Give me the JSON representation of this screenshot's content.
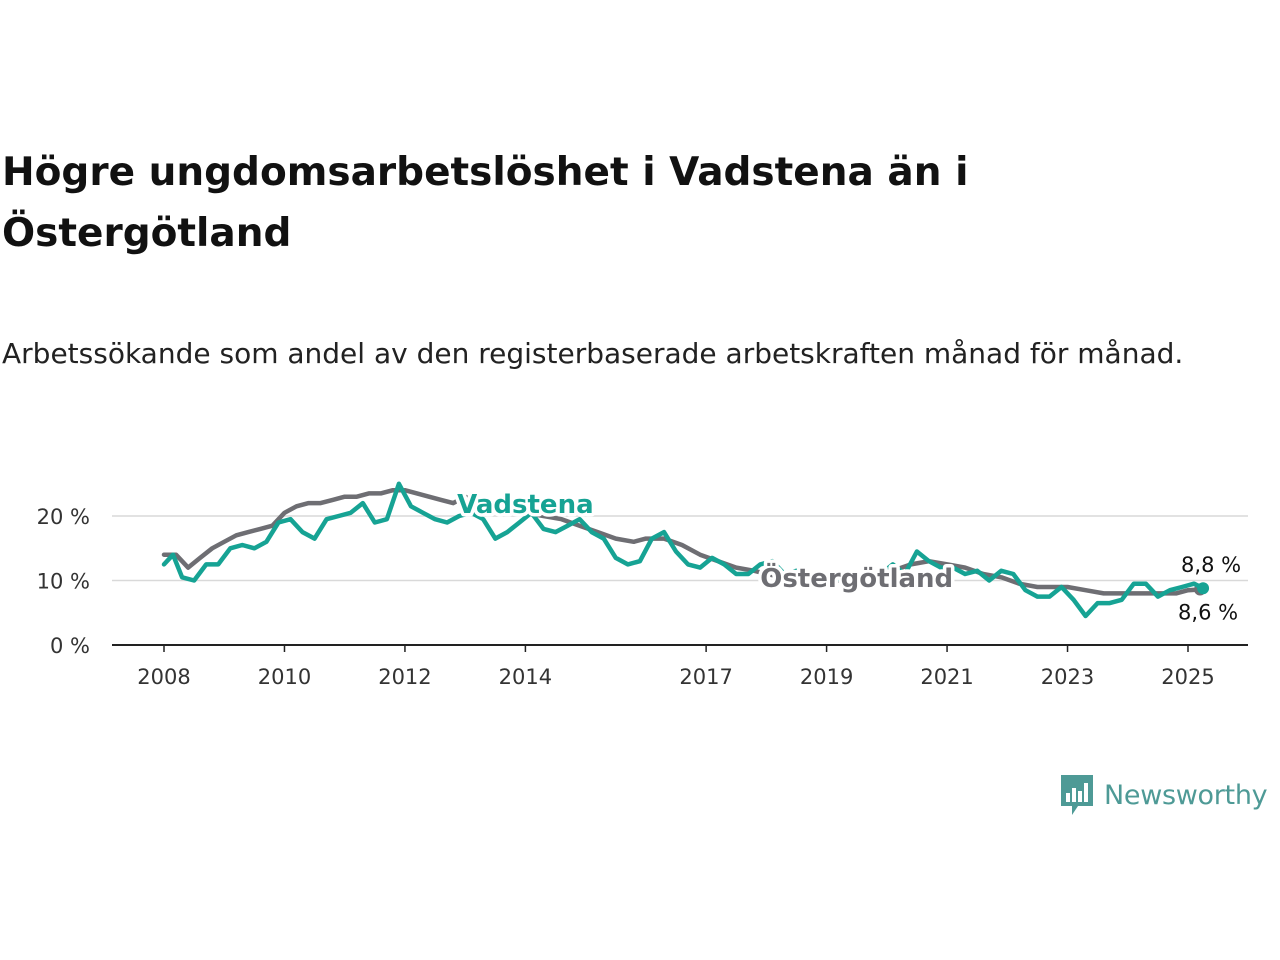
{
  "header": {
    "title": "Högre ungdomsarbetslöshet i Vadstena än i Östergötland",
    "subtitle": "Arbetssökande som andel av den registerbaserade arbetskraften månad för månad."
  },
  "brand": {
    "name": "Newsworthy",
    "icon": "newsworthy-logo-icon",
    "color": "#4e9a96"
  },
  "chart_data": {
    "type": "line",
    "title": "Högre ungdomsarbetslöshet i Vadstena än i Östergötland",
    "subtitle": "Arbetssökande som andel av den registerbaserade arbetskraften månad för månad.",
    "xlabel": "",
    "ylabel": "",
    "xlim": [
      2008,
      2025.5
    ],
    "ylim": [
      0,
      25
    ],
    "x_ticks": [
      2008,
      2010,
      2012,
      2014,
      2017,
      2019,
      2021,
      2023,
      2025
    ],
    "x_tick_labels": [
      "2008",
      "2010",
      "2012",
      "2014",
      "2017",
      "2019",
      "2021",
      "2023",
      "2025"
    ],
    "y_ticks": [
      0,
      10,
      20
    ],
    "y_tick_labels": [
      "0 %",
      "10 %",
      "20 %"
    ],
    "grid": "horizontal",
    "legend": "inline labels",
    "series": [
      {
        "name": "Östergötland",
        "color": "#6e6e73",
        "label_x": 2019.5,
        "label_y": 9.0,
        "end_label": "8,6 %",
        "x": [
          2008.0,
          2008.2,
          2008.4,
          2008.6,
          2008.8,
          2009.0,
          2009.2,
          2009.4,
          2009.6,
          2009.8,
          2010.0,
          2010.2,
          2010.4,
          2010.6,
          2010.8,
          2011.0,
          2011.2,
          2011.4,
          2011.6,
          2011.8,
          2012.0,
          2012.2,
          2012.4,
          2012.6,
          2012.8,
          2013.0,
          2013.2,
          2013.5,
          2013.8,
          2014.0,
          2014.3,
          2014.6,
          2014.9,
          2015.2,
          2015.5,
          2015.8,
          2016.0,
          2016.3,
          2016.6,
          2016.9,
          2017.2,
          2017.5,
          2017.8,
          2018.0,
          2018.3,
          2018.6,
          2018.9,
          2019.2,
          2019.5,
          2019.8,
          2020.1,
          2020.4,
          2020.7,
          2021.0,
          2021.3,
          2021.6,
          2021.9,
          2022.2,
          2022.5,
          2022.8,
          2023.0,
          2023.3,
          2023.6,
          2023.9,
          2024.2,
          2024.5,
          2024.8,
          2025.0,
          2025.2
        ],
        "values": [
          14.0,
          14.0,
          12.0,
          13.5,
          15.0,
          16.0,
          17.0,
          17.5,
          18.0,
          18.5,
          20.5,
          21.5,
          22.0,
          22.0,
          22.5,
          23.0,
          23.0,
          23.5,
          23.5,
          24.0,
          24.0,
          23.5,
          23.0,
          22.5,
          22.0,
          23.0,
          22.0,
          21.0,
          20.5,
          20.5,
          20.0,
          19.5,
          18.5,
          17.5,
          16.5,
          16.0,
          16.5,
          16.5,
          15.5,
          14.0,
          13.0,
          12.0,
          11.5,
          11.0,
          10.5,
          10.5,
          10.5,
          10.0,
          10.0,
          10.5,
          11.5,
          12.5,
          13.0,
          12.5,
          12.0,
          11.0,
          10.5,
          9.5,
          9.0,
          9.0,
          9.0,
          8.5,
          8.0,
          8.0,
          8.0,
          8.0,
          8.0,
          8.5,
          8.6
        ]
      },
      {
        "name": "Vadstena",
        "color": "#16a394",
        "label_x": 2014.0,
        "label_y": 20.5,
        "end_label": "8,8 %",
        "x": [
          2008.0,
          2008.15,
          2008.3,
          2008.5,
          2008.7,
          2008.9,
          2009.1,
          2009.3,
          2009.5,
          2009.7,
          2009.9,
          2010.1,
          2010.3,
          2010.5,
          2010.7,
          2010.9,
          2011.1,
          2011.3,
          2011.5,
          2011.7,
          2011.9,
          2012.1,
          2012.3,
          2012.5,
          2012.7,
          2012.9,
          2013.1,
          2013.3,
          2013.5,
          2013.7,
          2013.9,
          2014.1,
          2014.3,
          2014.5,
          2014.7,
          2014.9,
          2015.1,
          2015.3,
          2015.5,
          2015.7,
          2015.9,
          2016.1,
          2016.3,
          2016.5,
          2016.7,
          2016.9,
          2017.1,
          2017.3,
          2017.5,
          2017.7,
          2017.9,
          2018.1,
          2018.3,
          2018.5,
          2018.7,
          2018.9,
          2019.1,
          2019.3,
          2019.5,
          2019.7,
          2019.9,
          2020.1,
          2020.3,
          2020.5,
          2020.7,
          2020.9,
          2021.1,
          2021.3,
          2021.5,
          2021.7,
          2021.9,
          2022.1,
          2022.3,
          2022.5,
          2022.7,
          2022.9,
          2023.1,
          2023.3,
          2023.5,
          2023.7,
          2023.9,
          2024.1,
          2024.3,
          2024.5,
          2024.7,
          2024.9,
          2025.1,
          2025.25
        ],
        "values": [
          12.5,
          14.0,
          10.5,
          10.0,
          12.5,
          12.5,
          15.0,
          15.5,
          15.0,
          16.0,
          19.0,
          19.5,
          17.5,
          16.5,
          19.5,
          20.0,
          20.5,
          22.0,
          19.0,
          19.5,
          25.0,
          21.5,
          20.5,
          19.5,
          19.0,
          20.0,
          20.5,
          19.5,
          16.5,
          17.5,
          19.0,
          20.5,
          18.0,
          17.5,
          18.5,
          19.5,
          17.5,
          16.5,
          13.5,
          12.5,
          13.0,
          16.5,
          17.5,
          14.5,
          12.5,
          12.0,
          13.5,
          12.5,
          11.0,
          11.0,
          12.5,
          13.0,
          11.0,
          11.5,
          10.5,
          10.0,
          10.0,
          10.5,
          10.0,
          11.0,
          11.0,
          12.5,
          11.0,
          14.5,
          13.0,
          12.0,
          12.0,
          11.0,
          11.5,
          10.0,
          11.5,
          11.0,
          8.5,
          7.5,
          7.5,
          9.0,
          7.0,
          4.5,
          6.5,
          6.5,
          7.0,
          9.5,
          9.5,
          7.5,
          8.5,
          9.0,
          9.5,
          8.8
        ]
      }
    ]
  }
}
